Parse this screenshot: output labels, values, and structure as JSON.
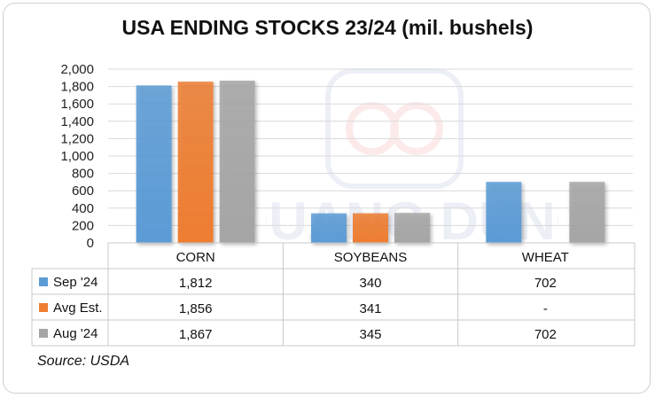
{
  "chart_data": {
    "type": "bar",
    "title": "USA ENDING STOCKS 23/24 (mil. bushels)",
    "categories": [
      "CORN",
      "SOYBEANS",
      "WHEAT"
    ],
    "series": [
      {
        "name": "Sep '24",
        "values": [
          1812,
          340,
          702
        ],
        "labels": [
          "1,812",
          "340",
          "702"
        ],
        "color": "#5b9bd5"
      },
      {
        "name": "Avg Est.",
        "values": [
          1856,
          341,
          null
        ],
        "labels": [
          "1,856",
          "341",
          "-"
        ],
        "color": "#ed7d31"
      },
      {
        "name": "Aug '24",
        "values": [
          1867,
          345,
          702
        ],
        "labels": [
          "1,867",
          "345",
          "702"
        ],
        "color": "#a5a5a5"
      }
    ],
    "yticks": [
      "0",
      "200",
      "400",
      "600",
      "800",
      "1,000",
      "1,200",
      "1,400",
      "1,600",
      "1,800",
      "2,000"
    ],
    "ylim": [
      0,
      2000
    ],
    "grid": true,
    "legend": "data-table"
  },
  "source": "Source: USDA",
  "watermark_text": "QUANG DUNG"
}
